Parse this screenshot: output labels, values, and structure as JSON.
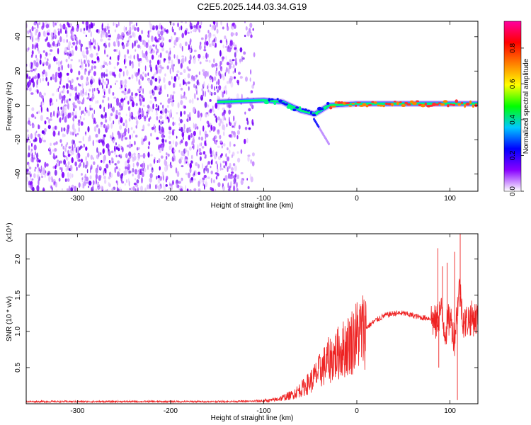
{
  "title": "C2E5.2025.144.03.34.G19",
  "chart_data": [
    {
      "type": "heatmap",
      "xlabel": "Height of straight line (km)",
      "ylabel": "Frequency (Hz)",
      "xlim": [
        -355,
        130
      ],
      "ylim": [
        -50,
        49
      ],
      "xticks": [
        -300,
        -200,
        -100,
        0,
        100
      ],
      "yticks": [
        -40,
        -20,
        0,
        20,
        40
      ],
      "xtick_labels": [
        "-300",
        "-200",
        "-100",
        "0",
        "100"
      ],
      "ytick_labels": [
        "-40",
        "-20",
        "0",
        "20",
        "40"
      ],
      "colorbar": {
        "label": "Normalized spectral amplitude",
        "range": [
          0,
          0.95
        ],
        "ticks": [
          0,
          0.2,
          0.4,
          0.6,
          0.8
        ],
        "tick_labels": [
          "0.0",
          "0.2",
          "0.4",
          "0.6",
          "0.8"
        ],
        "colormap": [
          "#ffffff",
          "#8800ff",
          "#0000ff",
          "#00c8ff",
          "#00ff00",
          "#ffff00",
          "#ff8000",
          "#ff0000",
          "#ff00a0"
        ]
      },
      "regions": [
        {
          "x": [
            -355,
            -110
          ],
          "freq": [
            -50,
            49
          ],
          "amplitude": 0.12,
          "description_of_data": "broadband noise"
        },
        {
          "x": [
            -110,
            130
          ],
          "freq": [
            -6,
            6
          ],
          "amplitude": 0.6,
          "description_of_data": "narrow carrier line near 0 Hz"
        }
      ],
      "carrier_center": [
        {
          "x": -150,
          "f": 2
        },
        {
          "x": -100,
          "f": 3
        },
        {
          "x": -80,
          "f": 2
        },
        {
          "x": -60,
          "f": -3
        },
        {
          "x": -45,
          "f": -5
        },
        {
          "x": -30,
          "f": 0
        },
        {
          "x": 0,
          "f": 1
        },
        {
          "x": 50,
          "f": 1
        },
        {
          "x": 100,
          "f": 1
        },
        {
          "x": 130,
          "f": 1
        }
      ]
    },
    {
      "type": "line",
      "xlabel": "Height of straight line (km)",
      "ylabel": "SNR (10 * v/v)",
      "y_multiplier_label": "(x10⁴)",
      "xlim": [
        -355,
        130
      ],
      "ylim": [
        0,
        2.35
      ],
      "xticks": [
        -300,
        -200,
        -100,
        0,
        100
      ],
      "yticks": [
        0.5,
        1.0,
        1.5,
        2.0
      ],
      "xtick_labels": [
        "-300",
        "-200",
        "-100",
        "0",
        "100"
      ],
      "ytick_labels": [
        "0.5",
        "1.0",
        "1.5",
        "2.0"
      ],
      "series": [
        {
          "color": "#ee2222",
          "x": [
            -355,
            -300,
            -250,
            -200,
            -150,
            -110,
            -100,
            -90,
            -80,
            -70,
            -60,
            -50,
            -40,
            -30,
            -20,
            -10,
            0,
            10,
            20,
            30,
            40,
            50,
            60,
            70,
            80,
            85,
            90,
            95,
            100,
            105,
            110,
            115,
            120,
            130
          ],
          "y": [
            0.03,
            0.03,
            0.03,
            0.03,
            0.03,
            0.035,
            0.04,
            0.05,
            0.08,
            0.12,
            0.2,
            0.3,
            0.45,
            0.6,
            0.7,
            0.8,
            0.95,
            1.05,
            1.15,
            1.22,
            1.25,
            1.25,
            1.22,
            1.19,
            1.18,
            1.1,
            1.3,
            1.0,
            1.2,
            0.9,
            1.6,
            1.1,
            1.18,
            1.18
          ]
        }
      ],
      "peaks": [
        {
          "x": 87,
          "y": 2.15
        },
        {
          "x": 88,
          "y": 0.5
        },
        {
          "x": 92,
          "y": 1.9
        },
        {
          "x": 97,
          "y": 1.95
        },
        {
          "x": 105,
          "y": 2.1
        },
        {
          "x": 108,
          "y": 0.05
        },
        {
          "x": 111,
          "y": 2.35
        }
      ]
    }
  ]
}
